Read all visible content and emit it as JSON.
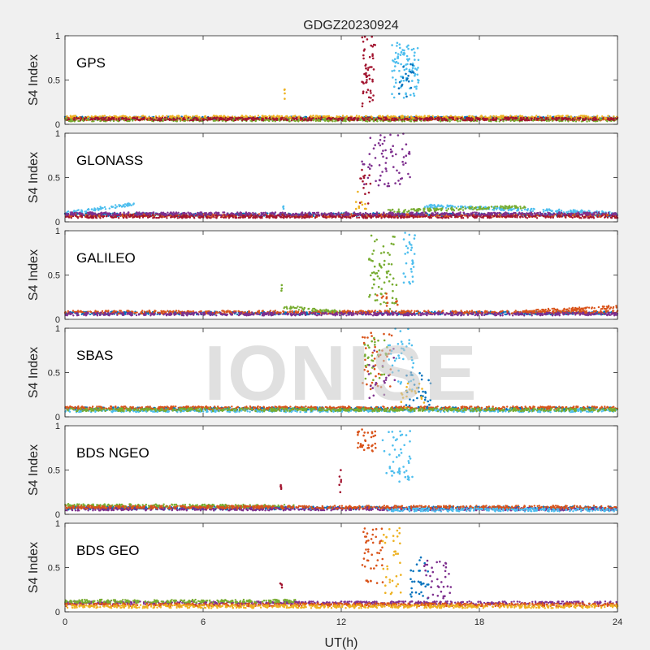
{
  "title": "GDGZ20230924",
  "watermark": "IONISE",
  "chart_data": {
    "type": "scatter",
    "xlabel": "UT(h)",
    "ylabel": "S4 Index",
    "xlim": [
      0,
      24
    ],
    "ylim": [
      0,
      1
    ],
    "xticks": [
      0,
      6,
      12,
      18,
      24
    ],
    "yticks": [
      0,
      0.5,
      1
    ],
    "colors": [
      "#0072bd",
      "#d95319",
      "#edb120",
      "#7e2f8e",
      "#77ac30",
      "#4dbeee",
      "#a2142f"
    ],
    "panels": [
      {
        "name": "GPS",
        "baseline": [
          {
            "color": 0,
            "x": [
              0,
              24
            ],
            "y": [
              0.07,
              0.07
            ]
          },
          {
            "color": 1,
            "x": [
              0,
              24
            ],
            "y": [
              0.06,
              0.06
            ]
          },
          {
            "color": 2,
            "x": [
              0,
              24
            ],
            "y": [
              0.08,
              0.08
            ]
          },
          {
            "color": 4,
            "x": [
              0,
              24
            ],
            "y": [
              0.05,
              0.05
            ]
          },
          {
            "color": 6,
            "x": [
              0,
              24
            ],
            "y": [
              0.06,
              0.06
            ]
          }
        ],
        "bursts": [
          {
            "color": 6,
            "x": [
              12.9,
              13.5
            ],
            "y": [
              0.2,
              1.0
            ],
            "n": 55
          },
          {
            "color": 5,
            "x": [
              14.2,
              15.4
            ],
            "y": [
              0.3,
              0.95
            ],
            "n": 90
          },
          {
            "color": 0,
            "x": [
              14.5,
              15.2
            ],
            "y": [
              0.3,
              0.7
            ],
            "n": 20
          },
          {
            "color": 2,
            "x": [
              9.5,
              9.55
            ],
            "y": [
              0.28,
              0.42
            ],
            "n": 4
          }
        ]
      },
      {
        "name": "GLONASS",
        "baseline": [
          {
            "color": 0,
            "x": [
              0,
              24
            ],
            "y": [
              0.08,
              0.08
            ]
          },
          {
            "color": 5,
            "x": [
              0,
              3
            ],
            "y": [
              0.1,
              0.2
            ]
          },
          {
            "color": 5,
            "x": [
              15.5,
              24
            ],
            "y": [
              0.18,
              0.1
            ]
          },
          {
            "color": 4,
            "x": [
              14,
              20
            ],
            "y": [
              0.12,
              0.17
            ]
          },
          {
            "color": 1,
            "x": [
              0,
              24
            ],
            "y": [
              0.07,
              0.07
            ]
          },
          {
            "color": 6,
            "x": [
              0,
              24
            ],
            "y": [
              0.06,
              0.06
            ]
          },
          {
            "color": 3,
            "x": [
              0,
              24
            ],
            "y": [
              0.09,
              0.09
            ]
          }
        ],
        "bursts": [
          {
            "color": 3,
            "x": [
              12.9,
              15.0
            ],
            "y": [
              0.4,
              1.0
            ],
            "n": 70
          },
          {
            "color": 6,
            "x": [
              12.8,
              13.3
            ],
            "y": [
              0.2,
              0.6
            ],
            "n": 15
          },
          {
            "color": 2,
            "x": [
              12.6,
              13.1
            ],
            "y": [
              0.1,
              0.35
            ],
            "n": 10
          },
          {
            "color": 5,
            "x": [
              9.45,
              9.5
            ],
            "y": [
              0.14,
              0.18
            ],
            "n": 3
          }
        ]
      },
      {
        "name": "GALILEO",
        "baseline": [
          {
            "color": 0,
            "x": [
              0,
              24
            ],
            "y": [
              0.07,
              0.07
            ]
          },
          {
            "color": 1,
            "x": [
              0,
              24
            ],
            "y": [
              0.08,
              0.08
            ]
          },
          {
            "color": 4,
            "x": [
              9.5,
              12
            ],
            "y": [
              0.14,
              0.08
            ]
          },
          {
            "color": 3,
            "x": [
              0,
              24
            ],
            "y": [
              0.06,
              0.06
            ]
          },
          {
            "color": 1,
            "x": [
              20,
              24
            ],
            "y": [
              0.09,
              0.14
            ]
          }
        ],
        "bursts": [
          {
            "color": 4,
            "x": [
              13.2,
              14.4
            ],
            "y": [
              0.1,
              0.95
            ],
            "n": 70
          },
          {
            "color": 5,
            "x": [
              14.7,
              15.2
            ],
            "y": [
              0.4,
              1.0
            ],
            "n": 30
          },
          {
            "color": 1,
            "x": [
              13.5,
              14.5
            ],
            "y": [
              0.1,
              0.3
            ],
            "n": 12
          },
          {
            "color": 4,
            "x": [
              9.4,
              9.45
            ],
            "y": [
              0.3,
              0.42
            ],
            "n": 3
          }
        ]
      },
      {
        "name": "SBAS",
        "baseline": [
          {
            "color": 0,
            "x": [
              0,
              24
            ],
            "y": [
              0.09,
              0.09
            ]
          },
          {
            "color": 5,
            "x": [
              0,
              24
            ],
            "y": [
              0.07,
              0.07
            ]
          },
          {
            "color": 1,
            "x": [
              0,
              24
            ],
            "y": [
              0.1,
              0.1
            ]
          },
          {
            "color": 4,
            "x": [
              0,
              24
            ],
            "y": [
              0.08,
              0.08
            ]
          }
        ],
        "bursts": [
          {
            "color": 1,
            "x": [
              12.9,
              14.2
            ],
            "y": [
              0.3,
              0.95
            ],
            "n": 45
          },
          {
            "color": 4,
            "x": [
              13.0,
              14.0
            ],
            "y": [
              0.4,
              0.9
            ],
            "n": 35
          },
          {
            "color": 5,
            "x": [
              14.0,
              15.2
            ],
            "y": [
              0.3,
              1.0
            ],
            "n": 40
          },
          {
            "color": 0,
            "x": [
              14.8,
              15.9
            ],
            "y": [
              0.1,
              0.5
            ],
            "n": 30
          },
          {
            "color": 2,
            "x": [
              14.6,
              15.6
            ],
            "y": [
              0.1,
              0.4
            ],
            "n": 20
          },
          {
            "color": 3,
            "x": [
              13.2,
              14.5
            ],
            "y": [
              0.2,
              0.8
            ],
            "n": 20
          }
        ]
      },
      {
        "name": "BDS NGEO",
        "baseline": [
          {
            "color": 0,
            "x": [
              0,
              24
            ],
            "y": [
              0.07,
              0.07
            ]
          },
          {
            "color": 4,
            "x": [
              0,
              10
            ],
            "y": [
              0.1,
              0.09
            ]
          },
          {
            "color": 3,
            "x": [
              0,
              24
            ],
            "y": [
              0.06,
              0.06
            ]
          },
          {
            "color": 1,
            "x": [
              0,
              24
            ],
            "y": [
              0.08,
              0.08
            ]
          },
          {
            "color": 5,
            "x": [
              14,
              24
            ],
            "y": [
              0.05,
              0.05
            ]
          }
        ],
        "bursts": [
          {
            "color": 1,
            "x": [
              12.7,
              13.5
            ],
            "y": [
              0.7,
              1.0
            ],
            "n": 35
          },
          {
            "color": 5,
            "x": [
              13.8,
              15.1
            ],
            "y": [
              0.35,
              0.95
            ],
            "n": 50
          },
          {
            "color": 6,
            "x": [
              11.9,
              12.0
            ],
            "y": [
              0.25,
              0.5
            ],
            "n": 6
          },
          {
            "color": 6,
            "x": [
              9.35,
              9.45
            ],
            "y": [
              0.28,
              0.33
            ],
            "n": 4
          }
        ]
      },
      {
        "name": "BDS GEO",
        "baseline": [
          {
            "color": 3,
            "x": [
              0,
              24
            ],
            "y": [
              0.1,
              0.1
            ]
          },
          {
            "color": 1,
            "x": [
              0,
              24
            ],
            "y": [
              0.08,
              0.08
            ]
          },
          {
            "color": 2,
            "x": [
              0,
              24
            ],
            "y": [
              0.06,
              0.06
            ]
          },
          {
            "color": 4,
            "x": [
              0,
              10
            ],
            "y": [
              0.12,
              0.12
            ]
          }
        ],
        "bursts": [
          {
            "color": 1,
            "x": [
              12.9,
              13.8
            ],
            "y": [
              0.3,
              0.95
            ],
            "n": 45
          },
          {
            "color": 2,
            "x": [
              13.8,
              14.6
            ],
            "y": [
              0.2,
              0.95
            ],
            "n": 35
          },
          {
            "color": 0,
            "x": [
              15.0,
              15.8
            ],
            "y": [
              0.15,
              0.7
            ],
            "n": 30
          },
          {
            "color": 3,
            "x": [
              15.6,
              16.8
            ],
            "y": [
              0.15,
              0.6
            ],
            "n": 35
          },
          {
            "color": 6,
            "x": [
              9.35,
              9.45
            ],
            "y": [
              0.27,
              0.33
            ],
            "n": 4
          }
        ]
      }
    ]
  }
}
